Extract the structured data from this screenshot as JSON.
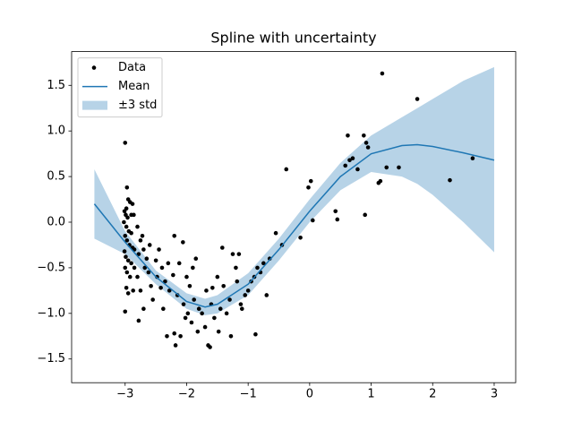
{
  "chart_data": {
    "type": "line",
    "title": "Spline with uncertainty",
    "xlim": [
      -3.87,
      3.35
    ],
    "ylim": [
      -1.76,
      1.87
    ],
    "xticks": [
      {
        "value": -3,
        "label": "−3"
      },
      {
        "value": -2,
        "label": "−2"
      },
      {
        "value": -1,
        "label": "−1"
      },
      0,
      1,
      2,
      3
    ],
    "yticks": [
      {
        "value": -1.5,
        "label": "−1.5"
      },
      {
        "value": -1,
        "label": "−1.0"
      },
      {
        "value": -0.5,
        "label": "−0.5"
      },
      {
        "value": 0,
        "label": "0.0"
      },
      0.5,
      {
        "value": 1,
        "label": "1.0"
      },
      1.5
    ],
    "legend": "upper left",
    "scatter": {
      "name": "Data",
      "color": "#000000",
      "x": [
        -3,
        -2.97,
        -2.95,
        -2.92,
        -2.88,
        -2.98,
        -3.01,
        -2.99,
        -2.96,
        -2.9,
        -2.86,
        -3.02,
        -2.98,
        -2.94,
        -2.9,
        -3.0,
        -2.97,
        -2.93,
        -2.88,
        -2.85,
        -3.01,
        -2.99,
        -2.95,
        -2.9,
        -2.85,
        -3.0,
        -2.97,
        -2.92,
        -2.98,
        -2.95,
        -3.0,
        -2.87,
        -2.8,
        -2.78,
        -2.75,
        -2.72,
        -2.8,
        -2.7,
        -2.68,
        -2.65,
        -2.6,
        -2.75,
        -2.7,
        -2.78,
        -2.62,
        -2.58,
        -2.55,
        -2.5,
        -2.48,
        -2.45,
        -2.4,
        -2.42,
        -2.38,
        -2.35,
        -2.3,
        -2.32,
        -2.28,
        -2.22,
        -2.2,
        -2.2,
        -2.18,
        -2.15,
        -2.12,
        -2.1,
        -2.05,
        -2.02,
        -2.0,
        -1.98,
        -1.95,
        -1.92,
        -1.9,
        -1.88,
        -1.85,
        -1.82,
        -1.8,
        -1.75,
        -1.7,
        -1.68,
        -1.65,
        -1.62,
        -1.6,
        -1.55,
        -1.5,
        -1.48,
        -1.45,
        -1.42,
        -1.4,
        -1.35,
        -1.3,
        -1.28,
        -1.25,
        -1.2,
        -1.18,
        -1.15,
        -1.12,
        -1.1,
        -1.05,
        -1.0,
        -0.95,
        -0.9,
        -0.88,
        -0.85,
        -0.8,
        -0.75,
        -0.7,
        -0.65,
        -0.55,
        -0.45,
        -0.38,
        -0.15,
        -0.02,
        0.02,
        0.05,
        0.42,
        0.45,
        0.58,
        0.62,
        0.65,
        0.7,
        0.78,
        0.88,
        0.9,
        0.92,
        0.95,
        1.12,
        1.15,
        1.18,
        1.25,
        1.45,
        1.75,
        2.28,
        2.65,
        -1.58,
        -2.06
      ],
      "y": [
        0.87,
        0.38,
        0.25,
        0.22,
        0.2,
        0.15,
        0.12,
        0.08,
        0.05,
        0.08,
        0.08,
        0.0,
        -0.05,
        -0.1,
        -0.12,
        -0.15,
        -0.2,
        -0.25,
        -0.28,
        -0.3,
        -0.32,
        -0.38,
        -0.42,
        -0.45,
        -0.5,
        -0.5,
        -0.55,
        -0.6,
        -0.72,
        -0.78,
        -0.98,
        -0.75,
        -0.6,
        -0.35,
        -0.2,
        -0.15,
        -0.05,
        -0.3,
        -0.5,
        -0.4,
        -0.25,
        -0.75,
        -0.95,
        -1.08,
        -0.55,
        -0.7,
        -0.85,
        -0.42,
        -0.6,
        -0.3,
        -0.5,
        -0.72,
        -0.95,
        -0.65,
        -0.45,
        -1.25,
        -0.75,
        -0.58,
        -0.15,
        -1.22,
        -1.35,
        -0.8,
        -0.45,
        -1.25,
        -0.9,
        -1.05,
        -0.6,
        -1.0,
        -0.7,
        -1.1,
        -0.5,
        -0.85,
        -0.4,
        -1.2,
        -0.95,
        -1.0,
        -1.15,
        -0.75,
        -1.35,
        -1.37,
        -0.9,
        -1.05,
        -0.6,
        -1.2,
        -0.95,
        -0.28,
        -0.7,
        -1.0,
        -0.85,
        -1.25,
        -0.35,
        -0.5,
        -0.65,
        -0.35,
        -0.9,
        -0.95,
        -0.8,
        -0.75,
        -0.65,
        -0.6,
        -1.23,
        -0.5,
        -0.55,
        -0.45,
        -0.8,
        -0.4,
        -0.12,
        -0.25,
        0.58,
        -0.17,
        0.38,
        0.45,
        0.02,
        0.12,
        0.03,
        0.62,
        0.95,
        0.68,
        0.7,
        0.58,
        0.95,
        0.08,
        0.87,
        0.82,
        0.43,
        0.45,
        1.63,
        0.6,
        0.6,
        1.35,
        0.46,
        0.7,
        -0.72,
        -0.22
      ]
    },
    "mean": {
      "name": "Mean",
      "color": "#1f77b4",
      "x": [
        -3.5,
        -3,
        -2.5,
        -2,
        -1.7,
        -1.5,
        -1,
        -0.5,
        0,
        0.5,
        1,
        1.5,
        1.75,
        2,
        2.5,
        3
      ],
      "values": [
        0.2,
        -0.22,
        -0.6,
        -0.87,
        -0.93,
        -0.9,
        -0.68,
        -0.3,
        0.12,
        0.5,
        0.75,
        0.84,
        0.85,
        0.83,
        0.76,
        0.68
      ]
    },
    "band": {
      "name": "±3 std",
      "color": "#1f77b4",
      "x": [
        -3.5,
        -3,
        -2.5,
        -2,
        -1.7,
        -1.5,
        -1,
        -0.5,
        0,
        0.5,
        1,
        1.5,
        1.75,
        2,
        2.5,
        3
      ],
      "upper": [
        0.58,
        -0.1,
        -0.53,
        -0.78,
        -0.84,
        -0.8,
        -0.56,
        -0.18,
        0.25,
        0.65,
        0.95,
        1.15,
        1.25,
        1.35,
        1.55,
        1.7
      ],
      "lower": [
        -0.18,
        -0.35,
        -0.68,
        -0.95,
        -1.02,
        -1.0,
        -0.8,
        -0.42,
        0.0,
        0.35,
        0.55,
        0.5,
        0.42,
        0.3,
        0.0,
        -0.33
      ]
    }
  }
}
